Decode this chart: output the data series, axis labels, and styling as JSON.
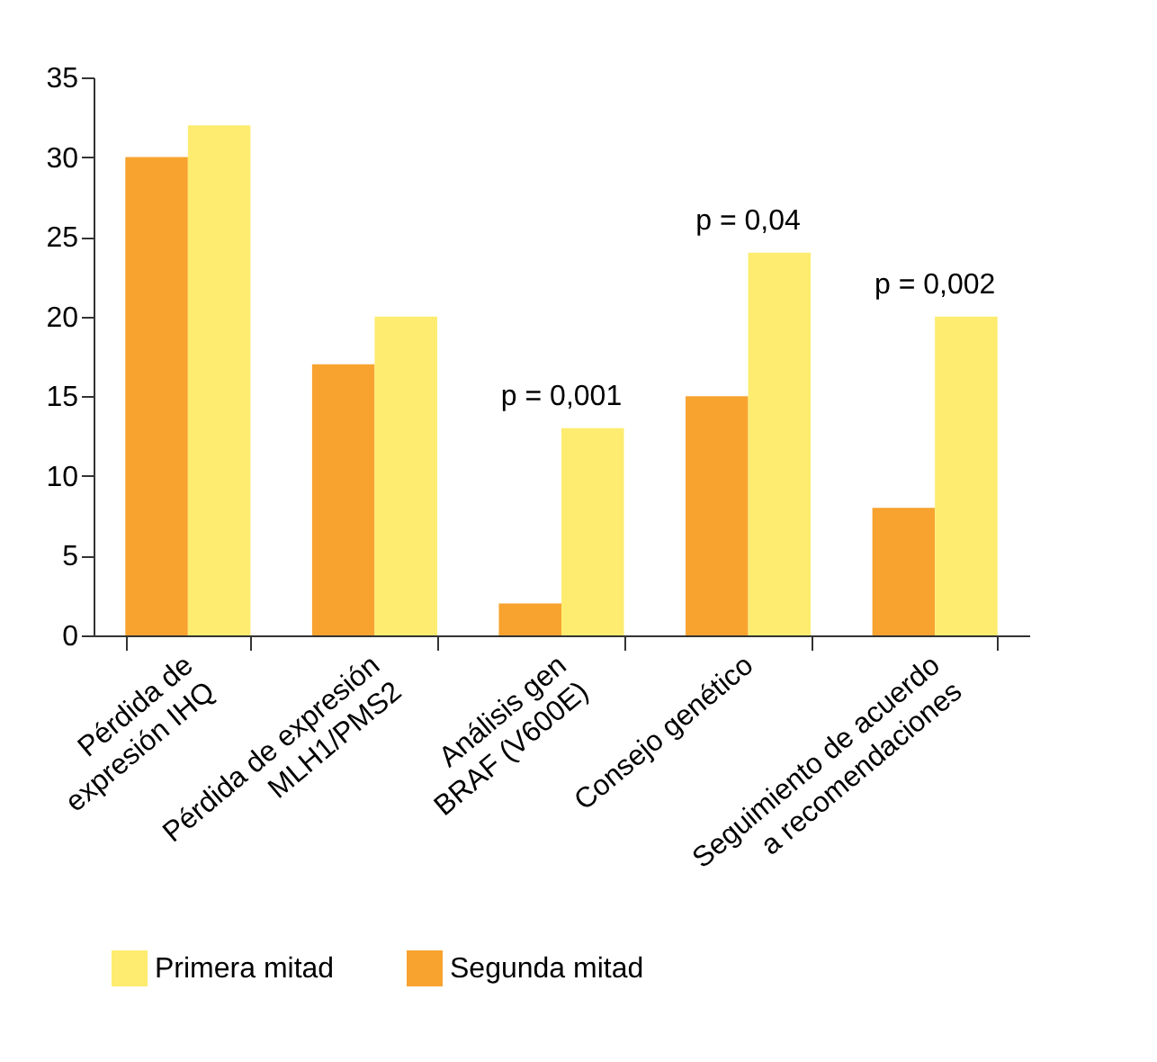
{
  "chart_data": {
    "type": "bar",
    "categories": [
      "Pérdida de\nexpresión IHQ",
      "Pérdida de expresión\nMLH1/PMS2",
      "Análisis gen\nBRAF (V600E)",
      "Consejo genético",
      "Seguimiento de acuerdo\na recomendaciones"
    ],
    "series": [
      {
        "name": "Segunda mitad",
        "color": "#f8a32f",
        "values": [
          30,
          17,
          2,
          15,
          8
        ]
      },
      {
        "name": "Primera mitad",
        "color": "#fdec6f",
        "values": [
          32,
          20,
          13,
          24,
          20
        ]
      }
    ],
    "ylim": [
      0,
      35
    ],
    "yticks": [
      0,
      5,
      10,
      15,
      20,
      25,
      30,
      35
    ],
    "annotations": [
      {
        "text": "p = 0,001",
        "x": "Análisis gen\nBRAF (V600E)",
        "y": 13
      },
      {
        "text": "p = 0,04",
        "x": "Consejo genético",
        "y": 24
      },
      {
        "text": "p = 0,002",
        "x": "Seguimiento de acuerdo\na recomendaciones",
        "y": 20
      }
    ],
    "legend": "bottom",
    "grid": false
  }
}
